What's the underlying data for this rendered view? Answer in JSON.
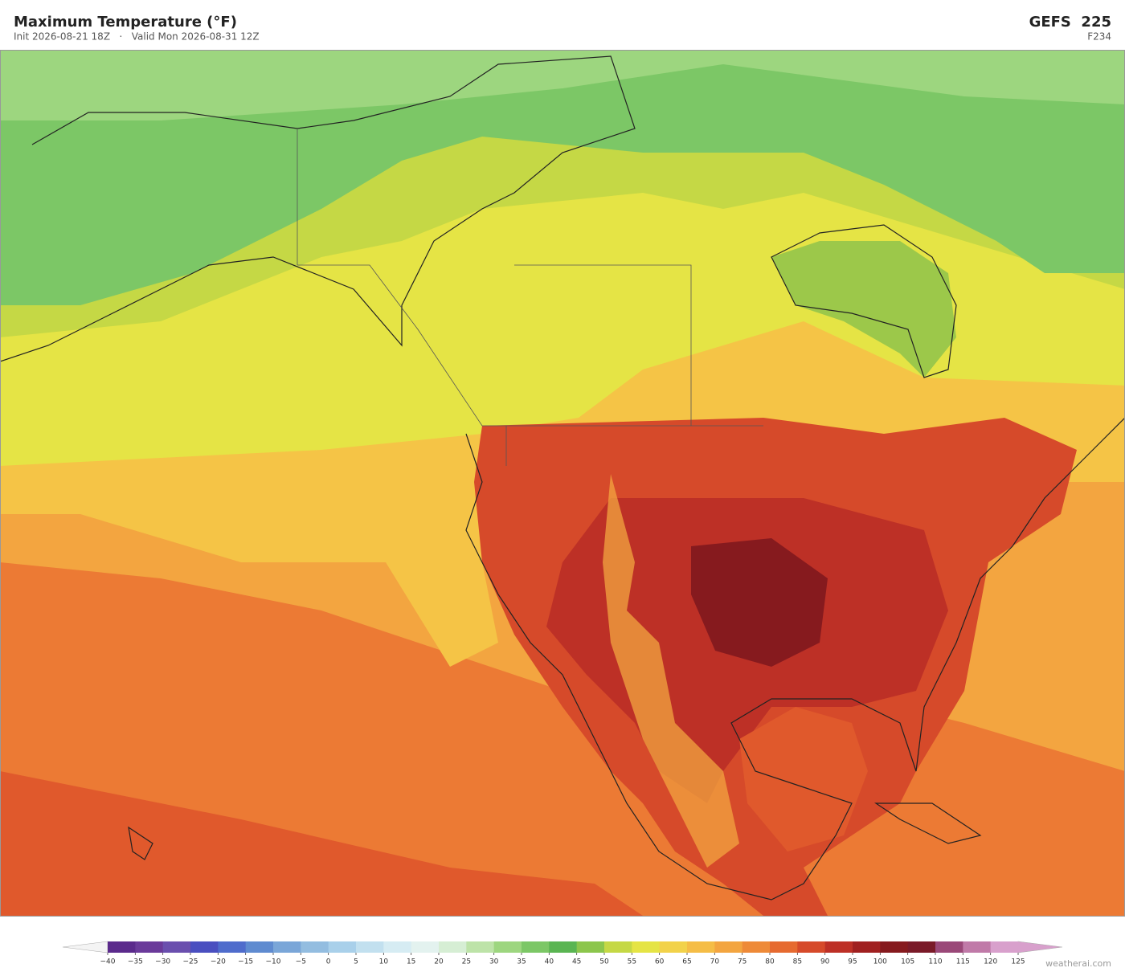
{
  "header": {
    "title": "Maximum Temperature  (°F)",
    "subtitle": "Init 2026-08-21 18Z   ·   Valid Mon 2026-08-31 12Z",
    "model": "GEFS  225",
    "forecast_hour": "F234"
  },
  "colorbar": {
    "ticks": [
      {
        "value": -40,
        "label": "−40"
      },
      {
        "value": -35,
        "label": "−35"
      },
      {
        "value": -30,
        "label": "−30"
      },
      {
        "value": -25,
        "label": "−25"
      },
      {
        "value": -20,
        "label": "−20"
      },
      {
        "value": -15,
        "label": "−15"
      },
      {
        "value": -10,
        "label": "−10"
      },
      {
        "value": -5,
        "label": "−5"
      },
      0,
      5,
      10,
      15,
      20,
      25,
      30,
      35,
      40,
      45,
      50,
      55,
      60,
      65,
      70,
      75,
      80,
      85,
      90,
      95,
      100,
      105,
      110,
      115,
      120,
      125
    ],
    "colors": [
      "#5b2a8c",
      "#6a3a9a",
      "#6a4fae",
      "#4a4fc0",
      "#4f6ccc",
      "#5f8bd0",
      "#7aa6d8",
      "#93bde0",
      "#a9d0ea",
      "#c2e0ef",
      "#d6ecf3",
      "#e3f2ef",
      "#d6eed4",
      "#bde3a8",
      "#9dd67f",
      "#7cc766",
      "#5ab552",
      "#8cc64c",
      "#c5d845",
      "#e5e445",
      "#f2d24a",
      "#f5bd46",
      "#f3a540",
      "#ee8a38",
      "#e66a30",
      "#d64a2a",
      "#bd3026",
      "#a02020",
      "#861a1e",
      "#7a1a28",
      "#9a4878",
      "#c07aa8",
      "#d8a0cc"
    ],
    "under_color": "#f4f4f4",
    "over_color": "#d8a0cc"
  },
  "footer": {
    "credit": "weatherai.com"
  }
}
